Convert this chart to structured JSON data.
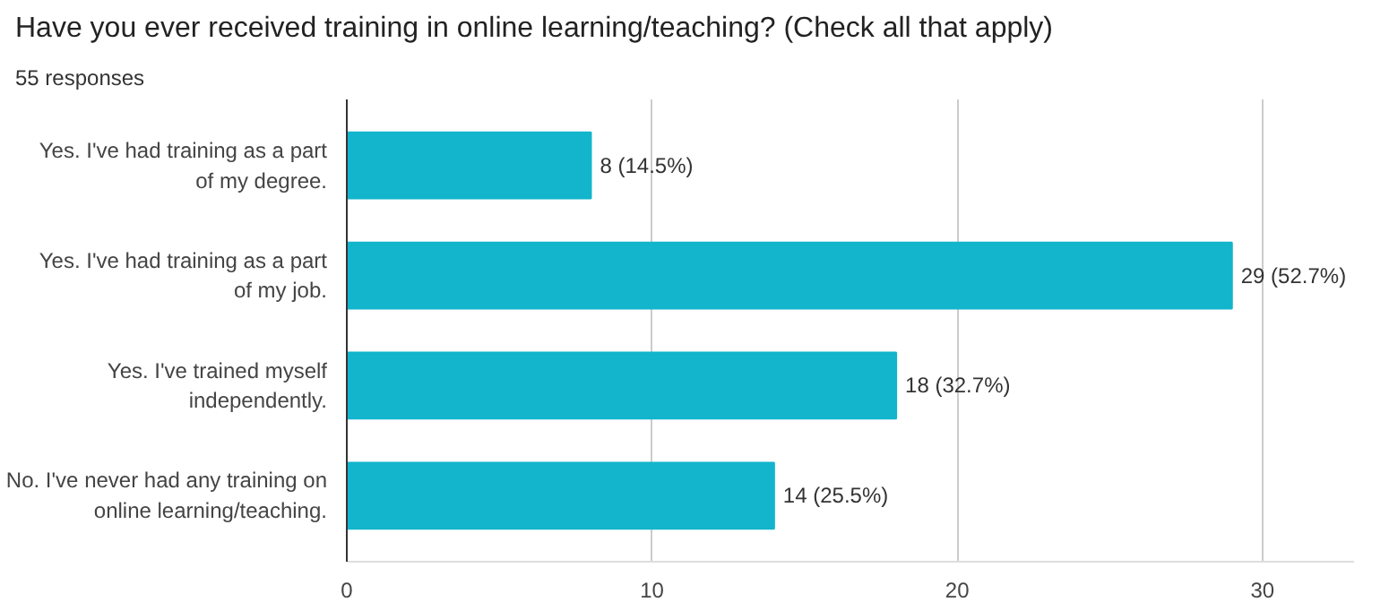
{
  "chart_data": {
    "type": "bar",
    "orientation": "horizontal",
    "title": "Have you ever received training in online learning/teaching? (Check all that apply)",
    "subtitle": "55 responses",
    "categories": [
      "Yes. I've had training as a part of my degree.",
      "Yes. I've had training as a part of my job.",
      "Yes. I've trained myself independently.",
      "No. I've never had any training on online learning/teaching."
    ],
    "values": [
      8,
      29,
      18,
      14
    ],
    "value_labels": [
      "8 (14.5%)",
      "29 (52.7%)",
      "18 (32.7%)",
      "14 (25.5%)"
    ],
    "color": "#12b5cb",
    "xlim": [
      0,
      33
    ],
    "xticks": [
      0,
      10,
      20,
      30
    ],
    "grid": "x"
  }
}
